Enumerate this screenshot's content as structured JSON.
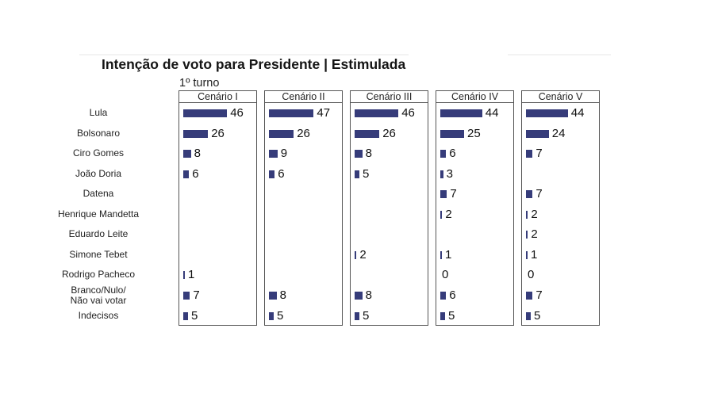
{
  "title": "Intenção de voto para Presidente | Estimulada",
  "subtitle": "1º turno",
  "chart_data": {
    "type": "bar",
    "orientation": "horizontal",
    "bar_color": "#363c7a",
    "title": "Intenção de voto para Presidente | Estimulada",
    "subtitle": "1º turno",
    "categories": [
      "Lula",
      "Bolsonaro",
      "Ciro Gomes",
      "João Doria",
      "Datena",
      "Henrique Mandetta",
      "Eduardo Leite",
      "Simone Tebet",
      "Rodrigo Pacheco",
      "Branco/Nulo/\nNão vai votar",
      "Indecisos"
    ],
    "series": [
      {
        "name": "Cenário I",
        "values": [
          46,
          26,
          8,
          6,
          null,
          null,
          null,
          null,
          1,
          7,
          5
        ]
      },
      {
        "name": "Cenário II",
        "values": [
          47,
          26,
          9,
          6,
          null,
          null,
          null,
          null,
          null,
          8,
          5
        ]
      },
      {
        "name": "Cenário III",
        "values": [
          46,
          26,
          8,
          5,
          null,
          null,
          null,
          2,
          null,
          8,
          5
        ]
      },
      {
        "name": "Cenário IV",
        "values": [
          44,
          25,
          6,
          3,
          7,
          2,
          null,
          1,
          0,
          6,
          5
        ]
      },
      {
        "name": "Cenário V",
        "values": [
          44,
          24,
          7,
          null,
          7,
          2,
          2,
          1,
          0,
          7,
          5
        ]
      }
    ],
    "xlim": [
      0,
      50
    ]
  }
}
